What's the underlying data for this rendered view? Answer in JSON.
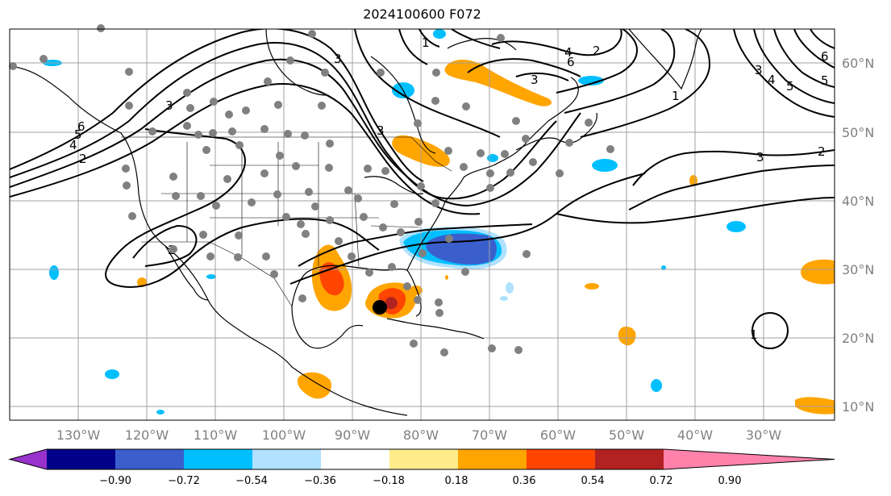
{
  "title": "2024100600 F072",
  "map": {
    "lon_labels": [
      "130°W",
      "120°W",
      "110°W",
      "100°W",
      "90°W",
      "80°W",
      "70°W",
      "60°W",
      "50°W",
      "40°W",
      "30°W"
    ],
    "lat_labels": [
      "60°N",
      "50°N",
      "40°N",
      "30°N",
      "20°N",
      "10°N"
    ],
    "contour_labels": [
      "2",
      "3",
      "3",
      "4",
      "5",
      "6",
      "2",
      "1",
      "3",
      "2",
      "3",
      "4",
      "5",
      "6",
      "1",
      "4",
      "3",
      "3",
      "1",
      "6",
      "5",
      "2"
    ],
    "storm_marker": "black-dot"
  },
  "colorbar": {
    "tick_labels": [
      "−0.90",
      "−0.72",
      "−0.54",
      "−0.36",
      "−0.18",
      "0.18",
      "0.36",
      "0.54",
      "0.72",
      "0.90"
    ],
    "colors": [
      "#9932CC",
      "#00008B",
      "#3A5FCD",
      "#00BFFF",
      "#B0E2FF",
      "#FFFFFF",
      "#FFEC8B",
      "#FFA500",
      "#FF4500",
      "#B22222",
      "#FF82AB"
    ]
  }
}
